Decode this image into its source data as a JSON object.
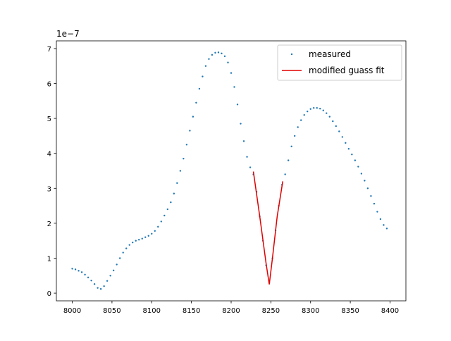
{
  "chart_data": {
    "type": "scatter",
    "offset_text": "1e−7",
    "xlim": [
      7980,
      8420
    ],
    "ylim": [
      -0.22,
      7.22
    ],
    "xticks": [
      8000,
      8050,
      8100,
      8150,
      8200,
      8250,
      8300,
      8350,
      8400
    ],
    "yticks": [
      0,
      1,
      2,
      3,
      4,
      5,
      6,
      7
    ],
    "grid": false,
    "legend": "upper right",
    "series": [
      {
        "name": "measured",
        "color": "#1f77b4",
        "mode": "markers",
        "x": [
          8000,
          8004,
          8008,
          8012,
          8016,
          8020,
          8024,
          8028,
          8032,
          8036,
          8040,
          8044,
          8048,
          8052,
          8056,
          8060,
          8064,
          8068,
          8072,
          8076,
          8080,
          8084,
          8088,
          8092,
          8096,
          8100,
          8104,
          8108,
          8112,
          8116,
          8120,
          8124,
          8128,
          8132,
          8136,
          8140,
          8144,
          8148,
          8152,
          8156,
          8160,
          8164,
          8168,
          8172,
          8176,
          8180,
          8184,
          8188,
          8192,
          8196,
          8200,
          8204,
          8208,
          8212,
          8216,
          8220,
          8224,
          8228,
          8232,
          8236,
          8240,
          8244,
          8248,
          8252,
          8256,
          8260,
          8264,
          8268,
          8272,
          8276,
          8280,
          8284,
          8288,
          8292,
          8296,
          8300,
          8304,
          8308,
          8312,
          8316,
          8320,
          8324,
          8328,
          8332,
          8336,
          8340,
          8344,
          8348,
          8352,
          8356,
          8360,
          8364,
          8368,
          8372,
          8376,
          8380,
          8384,
          8388,
          8392,
          8396
        ],
        "values": [
          0.7,
          0.68,
          0.64,
          0.6,
          0.53,
          0.45,
          0.36,
          0.26,
          0.15,
          0.12,
          0.2,
          0.35,
          0.5,
          0.65,
          0.82,
          1.0,
          1.16,
          1.28,
          1.38,
          1.45,
          1.5,
          1.53,
          1.56,
          1.6,
          1.64,
          1.7,
          1.78,
          1.9,
          2.05,
          2.22,
          2.4,
          2.6,
          2.85,
          3.15,
          3.5,
          3.85,
          4.25,
          4.65,
          5.05,
          5.45,
          5.85,
          6.2,
          6.5,
          6.7,
          6.82,
          6.88,
          6.89,
          6.86,
          6.78,
          6.6,
          6.3,
          5.9,
          5.4,
          4.85,
          4.35,
          3.9,
          3.6,
          3.4,
          2.9,
          2.2,
          1.5,
          0.8,
          0.3,
          1.0,
          1.8,
          2.5,
          3.1,
          3.4,
          3.8,
          4.2,
          4.5,
          4.75,
          4.95,
          5.1,
          5.2,
          5.27,
          5.3,
          5.3,
          5.28,
          5.23,
          5.15,
          5.05,
          4.92,
          4.78,
          4.63,
          4.47,
          4.3,
          4.13,
          3.97,
          3.8,
          3.62,
          3.42,
          3.22,
          3.0,
          2.78,
          2.56,
          2.33,
          2.12,
          1.95,
          1.85
        ]
      },
      {
        "name": "modified guass fit",
        "color": "#e00000",
        "mode": "line",
        "x": [
          8228,
          8236,
          8244,
          8248,
          8252,
          8258,
          8265
        ],
        "values": [
          3.48,
          2.2,
          0.85,
          0.25,
          1.0,
          2.2,
          3.2
        ]
      }
    ]
  }
}
